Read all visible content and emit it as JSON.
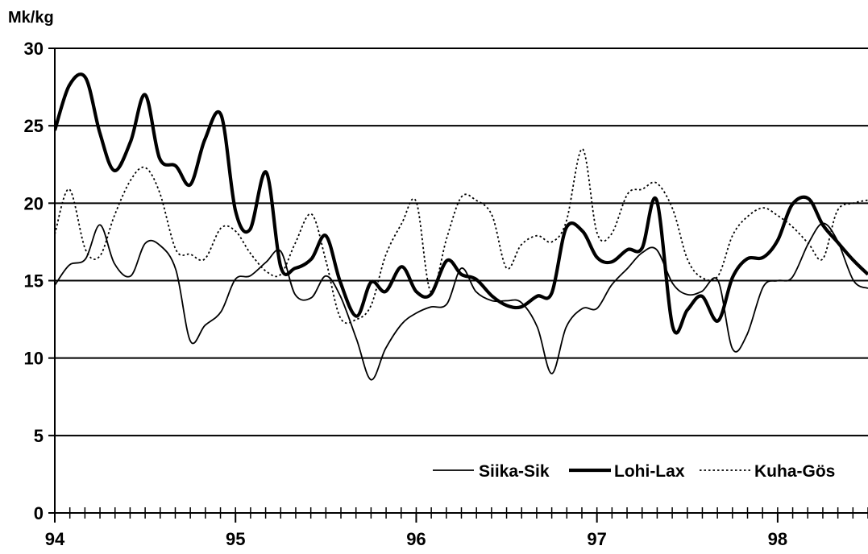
{
  "chart_data": {
    "type": "line",
    "ylabel": "Mk/kg",
    "xlabel": "",
    "ylim": [
      0,
      30
    ],
    "yticks": [
      0,
      5,
      10,
      15,
      20,
      25,
      30
    ],
    "xlim": [
      94,
      98.5
    ],
    "xticks": [
      94,
      95,
      96,
      97,
      98
    ],
    "xtick_labels": [
      "94",
      "95",
      "96",
      "97",
      "98"
    ],
    "grid": "horizontal",
    "legend": "bottom-right",
    "series": [
      {
        "name": "Siika-Sik",
        "style": "thin-solid",
        "x": [
          94.0,
          94.08,
          94.17,
          94.25,
          94.33,
          94.42,
          94.5,
          94.58,
          94.67,
          94.75,
          94.83,
          94.92,
          95.0,
          95.08,
          95.17,
          95.25,
          95.33,
          95.42,
          95.5,
          95.58,
          95.67,
          95.75,
          95.83,
          95.92,
          96.0,
          96.08,
          96.17,
          96.25,
          96.33,
          96.42,
          96.5,
          96.58,
          96.67,
          96.75,
          96.83,
          96.92,
          97.0,
          97.08,
          97.17,
          97.25,
          97.33,
          97.42,
          97.5,
          97.58,
          97.67,
          97.75,
          97.83,
          97.92,
          98.0,
          98.08,
          98.17,
          98.25,
          98.33,
          98.42,
          98.5
        ],
        "values": [
          14.7,
          16.0,
          16.4,
          18.6,
          16.1,
          15.3,
          17.4,
          17.3,
          15.7,
          11.1,
          12.1,
          13.0,
          15.1,
          15.3,
          16.2,
          16.9,
          14.1,
          13.9,
          15.3,
          14.0,
          11.2,
          8.6,
          10.6,
          12.2,
          12.9,
          13.3,
          13.5,
          15.8,
          14.3,
          13.7,
          13.7,
          13.6,
          12.0,
          9.0,
          12.0,
          13.2,
          13.2,
          14.7,
          15.8,
          16.8,
          17.0,
          14.8,
          14.1,
          14.3,
          15.0,
          10.6,
          11.5,
          14.6,
          15.0,
          15.2,
          17.4,
          18.7,
          17.6,
          15.0,
          14.5
        ]
      },
      {
        "name": "Lohi-Lax",
        "style": "thick-solid",
        "x": [
          94.0,
          94.08,
          94.17,
          94.25,
          94.33,
          94.42,
          94.5,
          94.58,
          94.67,
          94.75,
          94.83,
          94.92,
          95.0,
          95.08,
          95.17,
          95.25,
          95.33,
          95.42,
          95.5,
          95.58,
          95.67,
          95.75,
          95.83,
          95.92,
          96.0,
          96.08,
          96.17,
          96.25,
          96.33,
          96.42,
          96.5,
          96.58,
          96.67,
          96.75,
          96.83,
          96.92,
          97.0,
          97.08,
          97.17,
          97.25,
          97.33,
          97.42,
          97.5,
          97.58,
          97.67,
          97.75,
          97.83,
          97.92,
          98.0,
          98.08,
          98.17,
          98.25,
          98.33,
          98.42,
          98.5
        ],
        "values": [
          24.7,
          27.6,
          28.1,
          24.5,
          22.1,
          24.0,
          27.0,
          22.9,
          22.4,
          21.2,
          24.1,
          25.7,
          19.5,
          18.3,
          22.0,
          15.9,
          15.8,
          16.4,
          17.9,
          14.9,
          12.7,
          14.9,
          14.3,
          15.9,
          14.3,
          14.1,
          16.3,
          15.4,
          15.1,
          14.0,
          13.4,
          13.3,
          14.0,
          14.2,
          18.4,
          18.2,
          16.5,
          16.2,
          17.0,
          17.1,
          20.2,
          12.0,
          13.1,
          14.0,
          12.4,
          15.2,
          16.4,
          16.5,
          17.6,
          19.9,
          20.3,
          18.6,
          17.5,
          16.3,
          15.4
        ]
      },
      {
        "name": "Kuha-Gös",
        "style": "dotted",
        "x": [
          94.0,
          94.08,
          94.17,
          94.25,
          94.33,
          94.42,
          94.5,
          94.58,
          94.67,
          94.75,
          94.83,
          94.92,
          95.0,
          95.08,
          95.17,
          95.25,
          95.33,
          95.42,
          95.5,
          95.58,
          95.67,
          95.75,
          95.83,
          95.92,
          96.0,
          96.08,
          96.17,
          96.25,
          96.33,
          96.42,
          96.5,
          96.58,
          96.67,
          96.75,
          96.83,
          96.92,
          97.0,
          97.08,
          97.17,
          97.25,
          97.33,
          97.42,
          97.5,
          97.58,
          97.67,
          97.75,
          97.83,
          97.92,
          98.0,
          98.08,
          98.17,
          98.25,
          98.33,
          98.42,
          98.5
        ],
        "values": [
          18.0,
          20.9,
          17.0,
          16.6,
          19.2,
          21.5,
          22.3,
          20.7,
          17.0,
          16.7,
          16.4,
          18.4,
          18.2,
          16.8,
          15.6,
          15.4,
          17.4,
          19.3,
          16.3,
          12.6,
          12.5,
          13.4,
          16.6,
          18.7,
          20.1,
          14.3,
          17.8,
          20.4,
          20.2,
          19.2,
          15.8,
          17.3,
          17.9,
          17.5,
          18.8,
          23.5,
          18.1,
          18.0,
          20.6,
          20.9,
          21.3,
          19.6,
          16.4,
          15.2,
          15.3,
          17.9,
          19.1,
          19.7,
          19.2,
          18.5,
          17.4,
          16.4,
          19.5,
          20.0,
          20.2
        ]
      }
    ]
  }
}
